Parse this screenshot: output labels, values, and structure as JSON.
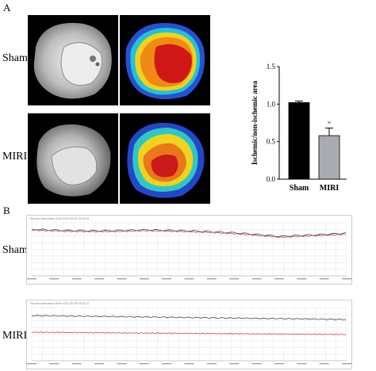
{
  "panel_a": {
    "letter": "A",
    "rows": [
      {
        "label": "Sham"
      },
      {
        "label": "MIRI"
      }
    ]
  },
  "panel_b": {
    "letter": "B",
    "traces": [
      {
        "label": "Sham",
        "header": "Volume Generation Time 2023-03-29 13:09:43"
      },
      {
        "label": "MIRI",
        "header": "Volume Generation Time 2023-03-29 13:20:11"
      }
    ]
  },
  "chart_data": {
    "type": "bar",
    "categories": [
      "Sham",
      "MIRI"
    ],
    "values": [
      1.02,
      0.58
    ],
    "errors": [
      0.02,
      0.1
    ],
    "bar_colors": [
      "#000000",
      "#a9abb0"
    ],
    "significance": [
      "",
      "*"
    ],
    "ylabel": "Ischemic/non-ischemic area",
    "ylim": [
      0,
      1.5
    ],
    "yticks": [
      "0.0",
      "0.5",
      "1.0",
      "1.5"
    ],
    "grid": false
  },
  "colors": {
    "trace_black": "#444444",
    "trace_red": "#d04545",
    "grid": "#dde4ea"
  }
}
